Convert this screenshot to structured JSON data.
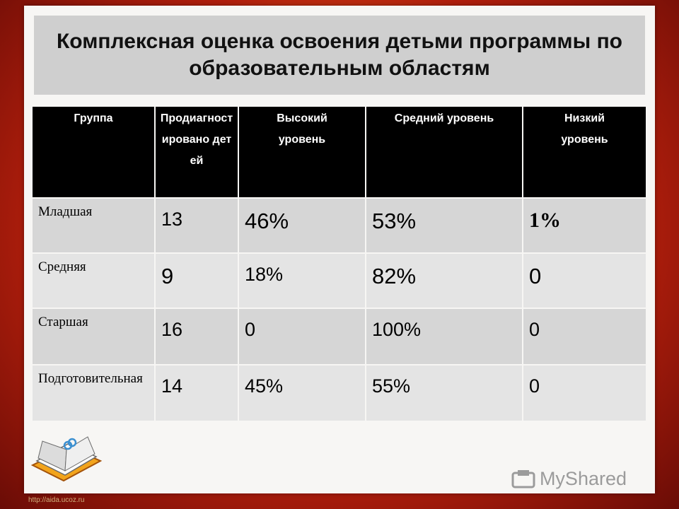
{
  "title": "Комплексная оценка освоения детьми программы по образовательным областям",
  "table": {
    "headers": [
      "Группа",
      "Продиагностировано детей",
      "Высокий уровень",
      "Средний уровень",
      "Низкий уровень"
    ],
    "rows": [
      [
        "Младшая",
        "13",
        "46%",
        "53%",
        "1%"
      ],
      [
        "Средняя",
        "9",
        "18%",
        "82%",
        "0"
      ],
      [
        "Старшая",
        "16",
        "0",
        "100%",
        "0"
      ],
      [
        "Подготовительная",
        "14",
        "45%",
        "55%",
        "0"
      ]
    ]
  },
  "watermark": "MyShared",
  "url": "http://aida.ucoz.ru",
  "icons": {
    "book": "open-book-icon",
    "logo": "myshared-logo-icon"
  },
  "colors": {
    "header_bg": "#000000",
    "cell_bg": "#d6d6d6",
    "title_bg": "#cfcfcf"
  }
}
